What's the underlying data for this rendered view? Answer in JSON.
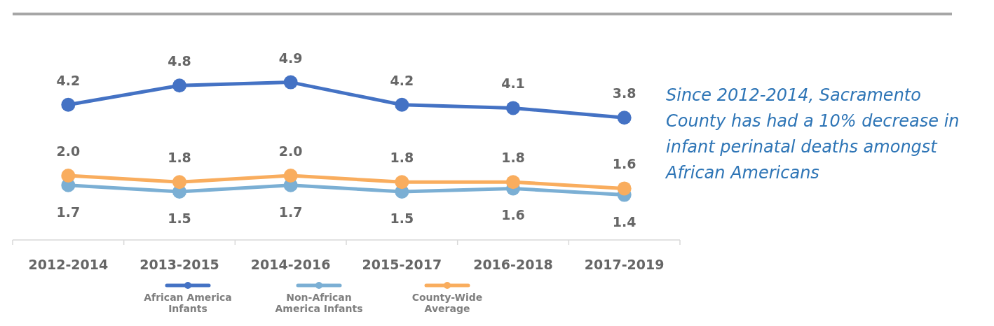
{
  "chart_data": {
    "type": "line",
    "categories": [
      "2012-2014",
      "2013-2015",
      "2014-2016",
      "2015-2017",
      "2016-2018",
      "2017-2019"
    ],
    "series": [
      {
        "name": "African America Infants",
        "color": "#4472c4",
        "values": [
          4.2,
          4.8,
          4.9,
          4.2,
          4.1,
          3.8
        ],
        "value_labels": [
          "4.2",
          "4.8",
          "4.9",
          "4.2",
          "4.1",
          "3.8"
        ]
      },
      {
        "name": "Non-African America Infants",
        "color": "#7bafd4",
        "values": [
          1.7,
          1.5,
          1.7,
          1.5,
          1.6,
          1.4
        ],
        "value_labels": [
          "1.7",
          "1.5",
          "1.7",
          "1.5",
          "1.6",
          "1.4"
        ]
      },
      {
        "name": "County-Wide Average",
        "color": "#f9ad5e",
        "values": [
          2.0,
          1.8,
          2.0,
          1.8,
          1.8,
          1.6
        ],
        "value_labels": [
          "2.0",
          "1.8",
          "2.0",
          "1.8",
          "1.8",
          "1.6"
        ]
      }
    ],
    "marker": "circle",
    "legend": "bottom",
    "grid": false,
    "annotations": [
      "Since 2012-2014, Sacramento County has had a 10% decrease in infant perinatal deaths amongst African Americans"
    ]
  }
}
